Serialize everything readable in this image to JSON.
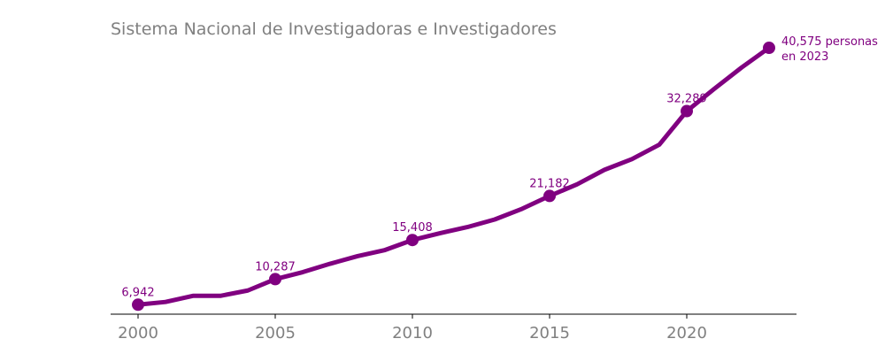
{
  "colors": {
    "series": "#800080",
    "title": "#808080",
    "ticks": "#808080",
    "axis": "#000000"
  },
  "chart_data": {
    "type": "line",
    "title": "Sistema Nacional de Investigadoras e Investigadores",
    "xlabel": "",
    "ylabel": "",
    "xlim": [
      1999,
      2024
    ],
    "ylim": [
      5700,
      42200
    ],
    "grid": false,
    "legend": "none",
    "x_ticks": [
      "2000",
      "2005",
      "2010",
      "2015",
      "2020"
    ],
    "series": [
      {
        "x": [
          2000,
          2001,
          2002,
          2003,
          2004,
          2005,
          2006,
          2007,
          2008,
          2009,
          2010,
          2011,
          2012,
          2013,
          2014,
          2015,
          2016,
          2017,
          2018,
          2019,
          2020,
          2021,
          2022,
          2023
        ],
        "values": [
          6942,
          7300,
          8100,
          8100,
          8800,
          10287,
          11200,
          12300,
          13300,
          14100,
          15408,
          16300,
          17100,
          18100,
          19500,
          21182,
          22700,
          24600,
          26000,
          27900,
          32289,
          35200,
          38000,
          40575
        ]
      }
    ],
    "annotations": [
      {
        "x": 2000,
        "y": 6942,
        "text": "6,942"
      },
      {
        "x": 2005,
        "y": 10287,
        "text": "10,287"
      },
      {
        "x": 2010,
        "y": 15408,
        "text": "15,408"
      },
      {
        "x": 2015,
        "y": 21182,
        "text": "21,182"
      },
      {
        "x": 2020,
        "y": 32289,
        "text": "32,289"
      }
    ],
    "end_label": [
      "40,575 personas",
      "en 2023"
    ]
  }
}
